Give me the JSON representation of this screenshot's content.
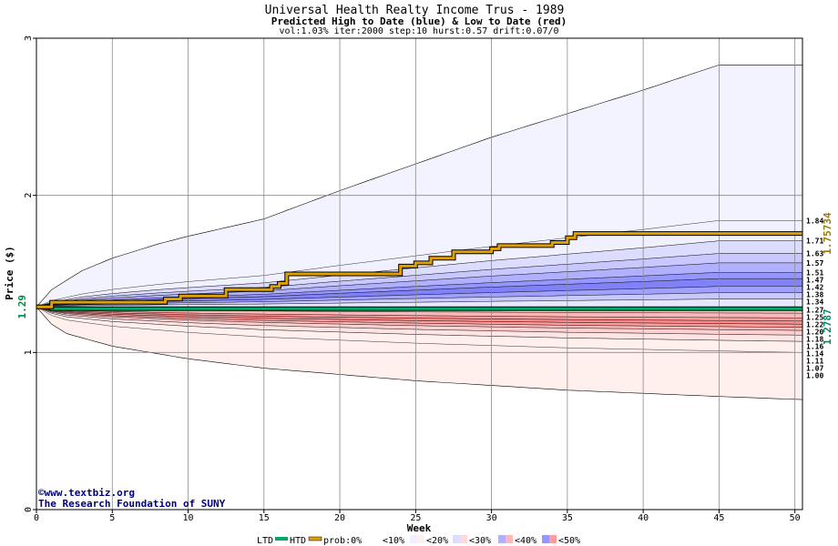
{
  "chart_data": {
    "type": "area",
    "title": "Universal Health Realty Income Trus - 1989",
    "subtitle": "Predicted High to Date (blue) &  Low to Date (red)",
    "params": "vol:1.03% iter:2000 step:10 hurst:0.57 drift:0.07/0",
    "xlabel": "Week",
    "ylabel": "Price ($)",
    "xlim": [
      0,
      50.5
    ],
    "ylim": [
      0,
      3
    ],
    "xticks": [
      0,
      5,
      10,
      15,
      20,
      25,
      30,
      35,
      40,
      45,
      50
    ],
    "yticks": [
      0,
      1,
      2,
      3
    ],
    "grid": true,
    "start_price": 1.29,
    "start_label": "1.29",
    "ltd_final": 1.2787,
    "ltd_final_label": "1.2787",
    "htd_final": 1.75734,
    "htd_final_label": "1.75734",
    "right_labels": [
      "1.84",
      "1.71",
      "1.63",
      "1.57",
      "1.51",
      "1.47",
      "1.42",
      "1.38",
      "1.34",
      "1.27",
      "1.25",
      "1.22",
      "1.20",
      "1.18",
      "1.16",
      "1.14",
      "1.11",
      "1.07",
      "1.00"
    ],
    "right_label_values": [
      1.84,
      1.71,
      1.63,
      1.57,
      1.51,
      1.47,
      1.42,
      1.38,
      1.34,
      1.27,
      1.25,
      1.22,
      1.2,
      1.18,
      1.16,
      1.14,
      1.11,
      1.07,
      1.0
    ],
    "high_envelope": {
      "x": [
        0,
        1,
        3,
        5,
        8,
        10,
        15,
        20,
        25,
        30,
        35,
        40,
        45,
        50.5
      ],
      "y": [
        1.29,
        1.4,
        1.52,
        1.6,
        1.69,
        1.74,
        1.85,
        2.03,
        2.2,
        2.37,
        2.52,
        2.67,
        2.83,
        2.83
      ]
    },
    "low_envelope": {
      "x": [
        0,
        1,
        2,
        5,
        10,
        15,
        20,
        25,
        30,
        35,
        40,
        45,
        50.5
      ],
      "y": [
        1.29,
        1.18,
        1.12,
        1.04,
        0.96,
        0.9,
        0.86,
        0.82,
        0.79,
        0.76,
        0.74,
        0.72,
        0.7
      ]
    },
    "high_bands": [
      {
        "final": 1.84,
        "prob": "<10%"
      },
      {
        "final": 1.71,
        "prob": "<20%"
      },
      {
        "final": 1.63,
        "prob": "<30%"
      },
      {
        "final": 1.57,
        "prob": "<40%"
      },
      {
        "final": 1.51,
        "prob": "<50%"
      },
      {
        "final": 1.47,
        "prob": "<50%"
      },
      {
        "final": 1.42,
        "prob": "<40%"
      },
      {
        "final": 1.38,
        "prob": "<30%"
      },
      {
        "final": 1.34,
        "prob": "<20%"
      }
    ],
    "low_bands": [
      {
        "final": 1.25,
        "prob": "<20%"
      },
      {
        "final": 1.22,
        "prob": "<30%"
      },
      {
        "final": 1.2,
        "prob": "<40%"
      },
      {
        "final": 1.18,
        "prob": "<50%"
      },
      {
        "final": 1.16,
        "prob": "<50%"
      },
      {
        "final": 1.14,
        "prob": "<40%"
      },
      {
        "final": 1.11,
        "prob": "<30%"
      },
      {
        "final": 1.07,
        "prob": "<20%"
      },
      {
        "final": 1.0,
        "prob": "<10%"
      }
    ],
    "htd_series": {
      "name": "HTD",
      "x": [
        0,
        0.5,
        1,
        4,
        8.5,
        9.5,
        12,
        12.5,
        15,
        15.5,
        16,
        16.5,
        17,
        24,
        25,
        26,
        27,
        27.5,
        29,
        30,
        30.5,
        34,
        35,
        35.5,
        50.5
      ],
      "y": [
        1.29,
        1.29,
        1.32,
        1.32,
        1.34,
        1.36,
        1.36,
        1.4,
        1.4,
        1.42,
        1.44,
        1.5,
        1.5,
        1.55,
        1.57,
        1.6,
        1.6,
        1.64,
        1.64,
        1.66,
        1.68,
        1.7,
        1.73,
        1.75734,
        1.75734
      ]
    },
    "ltd_series": {
      "name": "LTD",
      "x": [
        0,
        0.5,
        1,
        50.5
      ],
      "y": [
        1.29,
        1.29,
        1.2787,
        1.2787
      ]
    },
    "legend": {
      "items": [
        "LTD",
        "HTD",
        "prob:0%",
        "<10%",
        "<20%",
        "<30%",
        "<40%",
        "<50%"
      ]
    },
    "watermark": [
      "©www.textbiz.org",
      "The Research Foundation of SUNY"
    ]
  },
  "colors": {
    "blue_bands": [
      "#f0f0ff",
      "#dcdcff",
      "#c8c8ff",
      "#b0b0ff",
      "#9696ff",
      "#8282f8",
      "#a0a0ff",
      "#c8c8ff",
      "#e6e6ff"
    ],
    "red_bands": [
      "#ffcccc",
      "#ffb8b8",
      "#ff9c9c",
      "#ff8a8a",
      "#ff9c9c",
      "#ffb8b8",
      "#ffd0d0",
      "#ffe4e4",
      "#fff0ee"
    ],
    "ltd_color": "#00aa66",
    "htd_color": "#e0a000",
    "htd_label_color": "#9a7a00",
    "ltd_label_color": "#008866",
    "start_label_color": "#008844"
  }
}
